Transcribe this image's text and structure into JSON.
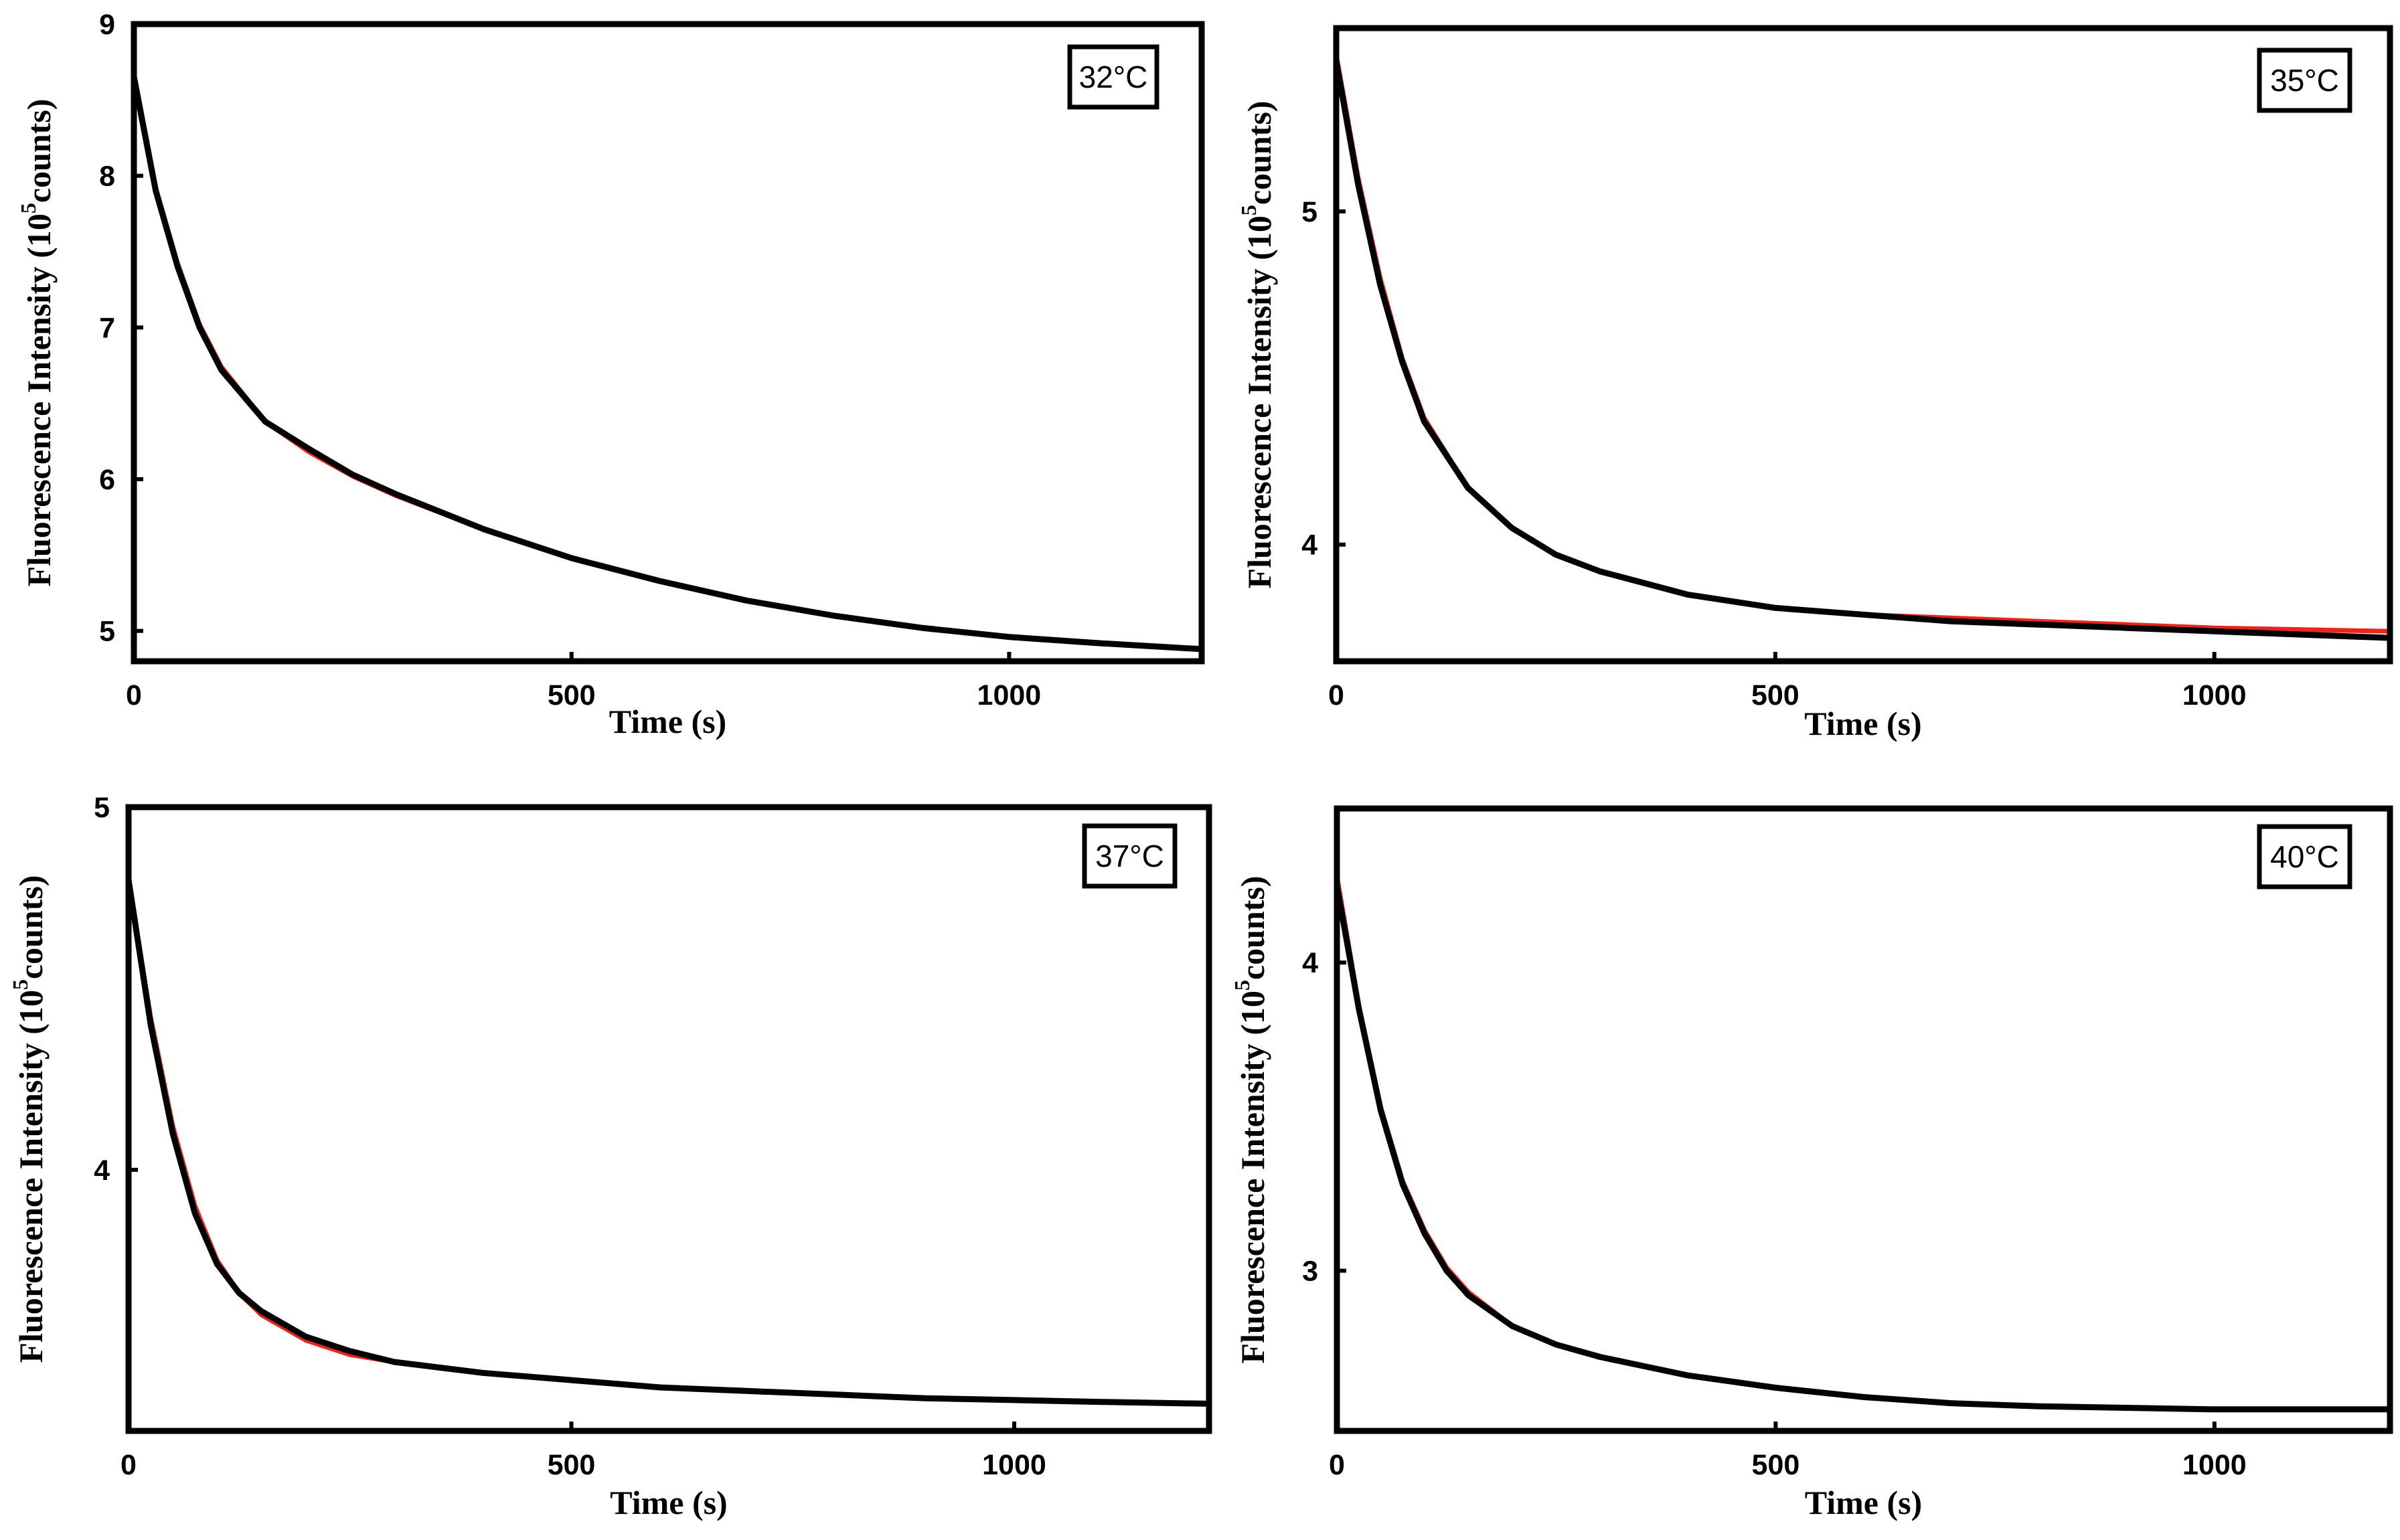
{
  "colors": {
    "data": "#000000",
    "fit": "#e8261c",
    "frame": "#000000"
  },
  "chart_data": [
    {
      "type": "line",
      "xlabel": "Time (s)",
      "ylabel": {
        "pre": "Fluorescence Intensity (10",
        "sup": "5",
        "post": "counts)"
      },
      "annotation": "32°C",
      "xlim": [
        0,
        1220
      ],
      "ylim": [
        4.8,
        9.0
      ],
      "xticks": [
        0,
        500,
        1000
      ],
      "yticks": [
        5,
        6,
        7,
        8,
        9
      ],
      "series": [
        {
          "role": "data",
          "x": [
            0,
            25,
            50,
            75,
            100,
            150,
            200,
            250,
            300,
            400,
            500,
            600,
            700,
            800,
            900,
            1000,
            1100,
            1220
          ],
          "y": [
            8.65,
            7.9,
            7.4,
            7.0,
            6.72,
            6.38,
            6.2,
            6.03,
            5.9,
            5.67,
            5.48,
            5.33,
            5.2,
            5.1,
            5.02,
            4.96,
            4.92,
            4.88
          ]
        },
        {
          "role": "fit",
          "x": [
            0,
            25,
            50,
            75,
            100,
            150,
            200,
            250,
            300,
            400,
            500,
            600,
            700,
            800,
            900,
            1000,
            1100,
            1220
          ],
          "y": [
            8.68,
            7.92,
            7.42,
            7.02,
            6.74,
            6.38,
            6.18,
            6.02,
            5.89,
            5.67,
            5.48,
            5.33,
            5.2,
            5.1,
            5.02,
            4.96,
            4.92,
            4.88
          ]
        }
      ]
    },
    {
      "type": "line",
      "xlabel": "Time (s)",
      "ylabel": {
        "pre": "Fluorescence Intensity (10",
        "sup": "5",
        "post": "counts)"
      },
      "annotation": "35°C",
      "xlim": [
        0,
        1200
      ],
      "ylim": [
        3.65,
        5.55
      ],
      "xticks": [
        0,
        500,
        1000
      ],
      "yticks": [
        4,
        5
      ],
      "series": [
        {
          "role": "data",
          "x": [
            0,
            25,
            50,
            75,
            100,
            150,
            200,
            250,
            300,
            400,
            500,
            600,
            700,
            800,
            900,
            1000,
            1100,
            1200
          ],
          "y": [
            5.45,
            5.08,
            4.78,
            4.55,
            4.37,
            4.17,
            4.05,
            3.97,
            3.92,
            3.85,
            3.81,
            3.79,
            3.77,
            3.76,
            3.75,
            3.74,
            3.73,
            3.72
          ]
        },
        {
          "role": "fit",
          "x": [
            0,
            25,
            50,
            75,
            100,
            150,
            200,
            250,
            300,
            400,
            500,
            600,
            700,
            800,
            900,
            1000,
            1100,
            1200
          ],
          "y": [
            5.47,
            5.1,
            4.8,
            4.56,
            4.38,
            4.17,
            4.05,
            3.97,
            3.92,
            3.85,
            3.81,
            3.79,
            3.78,
            3.77,
            3.76,
            3.75,
            3.745,
            3.74
          ]
        }
      ]
    },
    {
      "type": "line",
      "xlabel": "Time (s)",
      "ylabel": {
        "pre": "Fluorescence Intensity (10",
        "sup": "5",
        "post": "counts)"
      },
      "annotation": "37°C",
      "xlim": [
        0,
        1220
      ],
      "ylim": [
        3.28,
        5.0
      ],
      "xticks": [
        0,
        500,
        1000
      ],
      "yticks": [
        4,
        5
      ],
      "series": [
        {
          "role": "data",
          "x": [
            0,
            25,
            50,
            75,
            100,
            125,
            150,
            200,
            250,
            300,
            400,
            500,
            600,
            700,
            800,
            900,
            1000,
            1100,
            1220
          ],
          "y": [
            4.8,
            4.4,
            4.1,
            3.88,
            3.74,
            3.66,
            3.61,
            3.54,
            3.5,
            3.47,
            3.44,
            3.42,
            3.4,
            3.39,
            3.38,
            3.37,
            3.365,
            3.36,
            3.355
          ]
        },
        {
          "role": "fit",
          "x": [
            0,
            25,
            50,
            75,
            100,
            125,
            150,
            200,
            250,
            300,
            400,
            500,
            600,
            700,
            800,
            900,
            1000,
            1100,
            1220
          ],
          "y": [
            4.8,
            4.42,
            4.12,
            3.9,
            3.75,
            3.66,
            3.6,
            3.53,
            3.49,
            3.47,
            3.44,
            3.42,
            3.4,
            3.39,
            3.38,
            3.37,
            3.365,
            3.36,
            3.355
          ]
        }
      ]
    },
    {
      "type": "line",
      "xlabel": "Time (s)",
      "ylabel": {
        "pre": "Fluorescence Intensity (10",
        "sup": "5",
        "post": "counts)"
      },
      "annotation": "40°C",
      "xlim": [
        0,
        1200
      ],
      "ylim": [
        2.48,
        4.5
      ],
      "xticks": [
        0,
        500,
        1000
      ],
      "yticks": [
        3,
        4
      ],
      "series": [
        {
          "role": "data",
          "x": [
            0,
            25,
            50,
            75,
            100,
            125,
            150,
            200,
            250,
            300,
            400,
            500,
            600,
            700,
            800,
            900,
            1000,
            1100,
            1200
          ],
          "y": [
            4.25,
            3.85,
            3.52,
            3.28,
            3.12,
            3.0,
            2.92,
            2.82,
            2.76,
            2.72,
            2.66,
            2.62,
            2.59,
            2.57,
            2.56,
            2.555,
            2.55,
            2.55,
            2.55
          ]
        },
        {
          "role": "fit",
          "x": [
            0,
            25,
            50,
            75,
            100,
            125,
            150,
            200,
            250,
            300,
            400,
            500,
            600,
            700,
            800,
            900,
            1000,
            1100,
            1200
          ],
          "y": [
            4.28,
            3.86,
            3.53,
            3.29,
            3.13,
            3.01,
            2.93,
            2.82,
            2.76,
            2.72,
            2.66,
            2.62,
            2.59,
            2.57,
            2.56,
            2.555,
            2.55,
            2.55,
            2.55
          ]
        }
      ]
    }
  ]
}
